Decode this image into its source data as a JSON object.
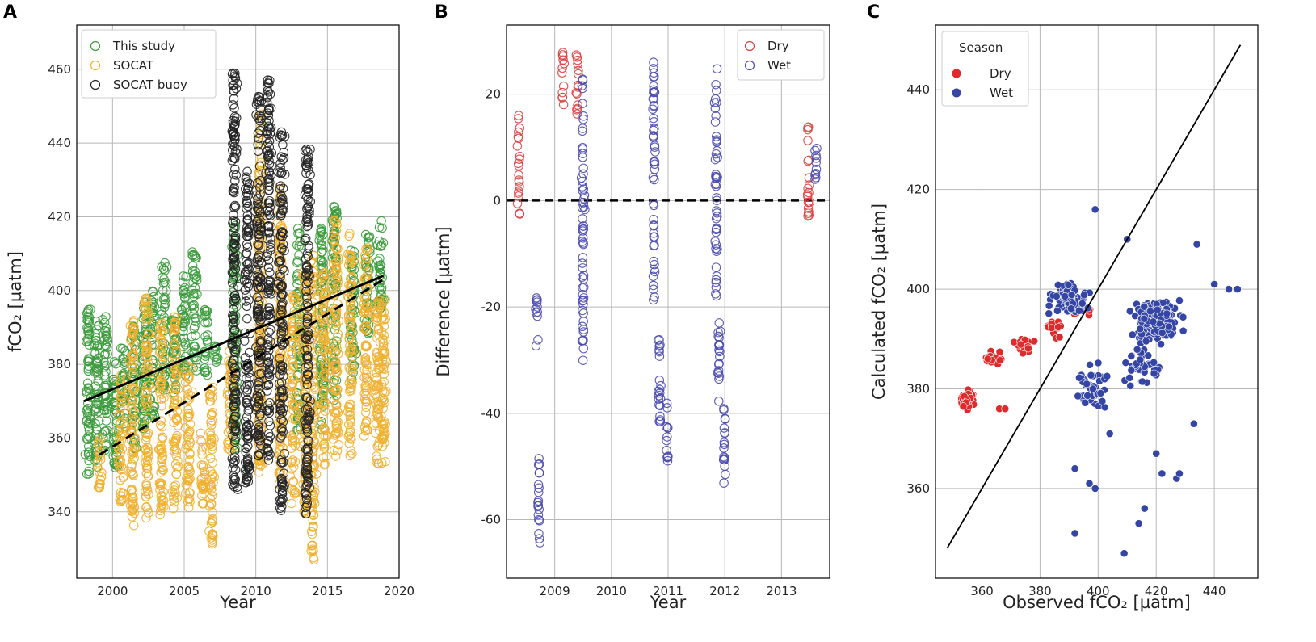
{
  "chart_data": [
    {
      "type": "scatter",
      "panel_label": "A",
      "xlabel": "Year",
      "ylabel": "fCO₂ [µatm]",
      "xlim": [
        1997.5,
        2020
      ],
      "ylim": [
        322,
        472
      ],
      "xticks": [
        2000,
        2005,
        2010,
        2015,
        2020
      ],
      "yticks": [
        340,
        360,
        380,
        400,
        420,
        440,
        460
      ],
      "legend_position": "top-left",
      "series": [
        {
          "name": "This study",
          "color": "#3a9a3a",
          "marker": "open-circle",
          "clusters": [
            [
              1998.3,
              350,
              395
            ],
            [
              1998.9,
              352,
              392
            ],
            [
              1999.5,
              356,
              393
            ],
            [
              2000.2,
              352,
              382
            ],
            [
              2000.8,
              362,
              385
            ],
            [
              2001.5,
              357,
              393
            ],
            [
              2002.2,
              362,
              397
            ],
            [
              2002.8,
              366,
              400
            ],
            [
              2003.6,
              373,
              408
            ],
            [
              2004.3,
              372,
              395
            ],
            [
              2005.0,
              376,
              404
            ],
            [
              2005.7,
              378,
              411
            ],
            [
              2006.5,
              377,
              395
            ],
            [
              2007.2,
              380,
              385
            ],
            [
              2008.5,
              357,
              419
            ],
            [
              2013.0,
              362,
              417
            ],
            [
              2014.6,
              362,
              418
            ],
            [
              2015.5,
              370,
              423
            ],
            [
              2016.8,
              376,
              411
            ],
            [
              2017.8,
              388,
              416
            ],
            [
              2018.7,
              394,
              420
            ]
          ]
        },
        {
          "name": "SOCAT",
          "color": "#f0b030",
          "marker": "open-circle",
          "clusters": [
            [
              1999.1,
              346,
              360
            ],
            [
              2000.6,
              342,
              378
            ],
            [
              2001.4,
              336,
              392
            ],
            [
              2002.4,
              338,
              398
            ],
            [
              2003.4,
              339,
              392
            ],
            [
              2004.4,
              340,
              393
            ],
            [
              2005.3,
              340,
              380
            ],
            [
              2006.3,
              342,
              362
            ],
            [
              2006.9,
              331,
              374
            ],
            [
              2008.2,
              355,
              385
            ],
            [
              2010.3,
              350,
              449
            ],
            [
              2011.7,
              345,
              430
            ],
            [
              2012.6,
              342,
              400
            ],
            [
              2013.4,
              339,
              405
            ],
            [
              2014.0,
              327,
              410
            ],
            [
              2014.8,
              352,
              405
            ],
            [
              2015.6,
              355,
              420
            ],
            [
              2016.6,
              355,
              418
            ],
            [
              2017.7,
              360,
              412
            ],
            [
              2018.5,
              353,
              399
            ],
            [
              2018.9,
              353,
              398
            ]
          ]
        },
        {
          "name": "SOCAT buoy",
          "color": "#222222",
          "marker": "open-circle",
          "clusters": [
            [
              2008.5,
              346,
              462
            ],
            [
              2009.4,
              347,
              433
            ],
            [
              2010.2,
              355,
              453
            ],
            [
              2010.9,
              353,
              458
            ],
            [
              2011.8,
              340,
              443
            ],
            [
              2013.6,
              337,
              439
            ]
          ]
        }
      ],
      "trend_lines": [
        {
          "name": "This study trend",
          "style": "solid",
          "x": [
            1998.0,
            2018.9
          ],
          "y": [
            370.0,
            404.0
          ]
        },
        {
          "name": "SOCAT trend",
          "style": "dashed",
          "x": [
            1999.1,
            2018.9
          ],
          "y": [
            355.5,
            403.0
          ]
        }
      ]
    },
    {
      "type": "scatter",
      "panel_label": "B",
      "xlabel": "Year",
      "ylabel": "Difference [µatm]",
      "xlim": [
        2008.15,
        2013.85
      ],
      "ylim": [
        -71,
        33
      ],
      "xticks": [
        2009,
        2010,
        2011,
        2012,
        2013
      ],
      "yticks": [
        -60,
        -40,
        -20,
        0,
        20
      ],
      "reference_line": {
        "y": 0,
        "style": "dashed"
      },
      "legend_position": "top-right",
      "series": [
        {
          "name": "Dry",
          "color": "#d94040",
          "marker": "open-circle",
          "clusters": [
            [
              2008.37,
              -3,
              16
            ],
            [
              2009.15,
              17,
              28
            ],
            [
              2009.4,
              15,
              28
            ],
            [
              2013.48,
              -3,
              14
            ]
          ]
        },
        {
          "name": "Wet",
          "color": "#4a4ab0",
          "marker": "open-circle",
          "clusters": [
            [
              2008.68,
              -28,
              -18
            ],
            [
              2008.72,
              -65,
              -48
            ],
            [
              2009.5,
              -31,
              25
            ],
            [
              2010.75,
              -20,
              26
            ],
            [
              2010.85,
              -45,
              -26
            ],
            [
              2010.98,
              -49,
              -38
            ],
            [
              2011.85,
              -18,
              25
            ],
            [
              2011.9,
              -40,
              -23
            ],
            [
              2012.0,
              -54,
              -38
            ],
            [
              2013.6,
              3,
              10
            ]
          ]
        }
      ]
    },
    {
      "type": "scatter",
      "panel_label": "C",
      "xlabel": "Observed fCO₂ [µatm]",
      "ylabel": "Calculated fCO₂ [µatm]",
      "xlim": [
        344,
        455
      ],
      "ylim": [
        342,
        453
      ],
      "xticks": [
        360,
        380,
        400,
        420,
        440
      ],
      "yticks": [
        360,
        380,
        400,
        420,
        440
      ],
      "legend_title": "Season",
      "legend_position": "top-left",
      "identity_line": {
        "x": [
          348,
          449
        ],
        "y": [
          348,
          449
        ]
      },
      "series": [
        {
          "name": "Dry",
          "color": "#dd2a2a",
          "marker": "filled-circle",
          "clusters": [
            [
              355,
              378,
              3,
              2.5,
              70
            ],
            [
              364,
              386,
              4,
              2,
              25
            ],
            [
              375,
              389,
              5,
              2.5,
              25
            ],
            [
              385,
              392,
              5,
              3,
              15
            ],
            [
              395,
              396,
              5,
              3,
              10
            ]
          ],
          "extra_points": [
            [
              366,
              376
            ],
            [
              368,
              376
            ],
            [
              362,
              386
            ]
          ]
        },
        {
          "name": "Wet",
          "color": "#3545a5",
          "marker": "filled-circle",
          "clusters": [
            [
              390,
              398,
              9,
              4,
              110
            ],
            [
              420,
              394,
              11,
              6,
              160
            ],
            [
              397,
              380,
              8,
              6,
              45
            ],
            [
              415,
              385,
              8,
              6,
              45
            ]
          ],
          "extra_points": [
            [
              399,
              416
            ],
            [
              410,
              410
            ],
            [
              397,
              361
            ],
            [
              399,
              360
            ],
            [
              392,
              351
            ],
            [
              409,
              347
            ],
            [
              416,
              356
            ],
            [
              414,
              353
            ],
            [
              422,
              363
            ],
            [
              427,
              362
            ],
            [
              428,
              363
            ],
            [
              433,
              373
            ],
            [
              434,
              409
            ],
            [
              445,
              400
            ],
            [
              448,
              400
            ],
            [
              440,
              401
            ],
            [
              404,
              371
            ],
            [
              420,
              367
            ],
            [
              392,
              364
            ]
          ]
        }
      ]
    }
  ]
}
